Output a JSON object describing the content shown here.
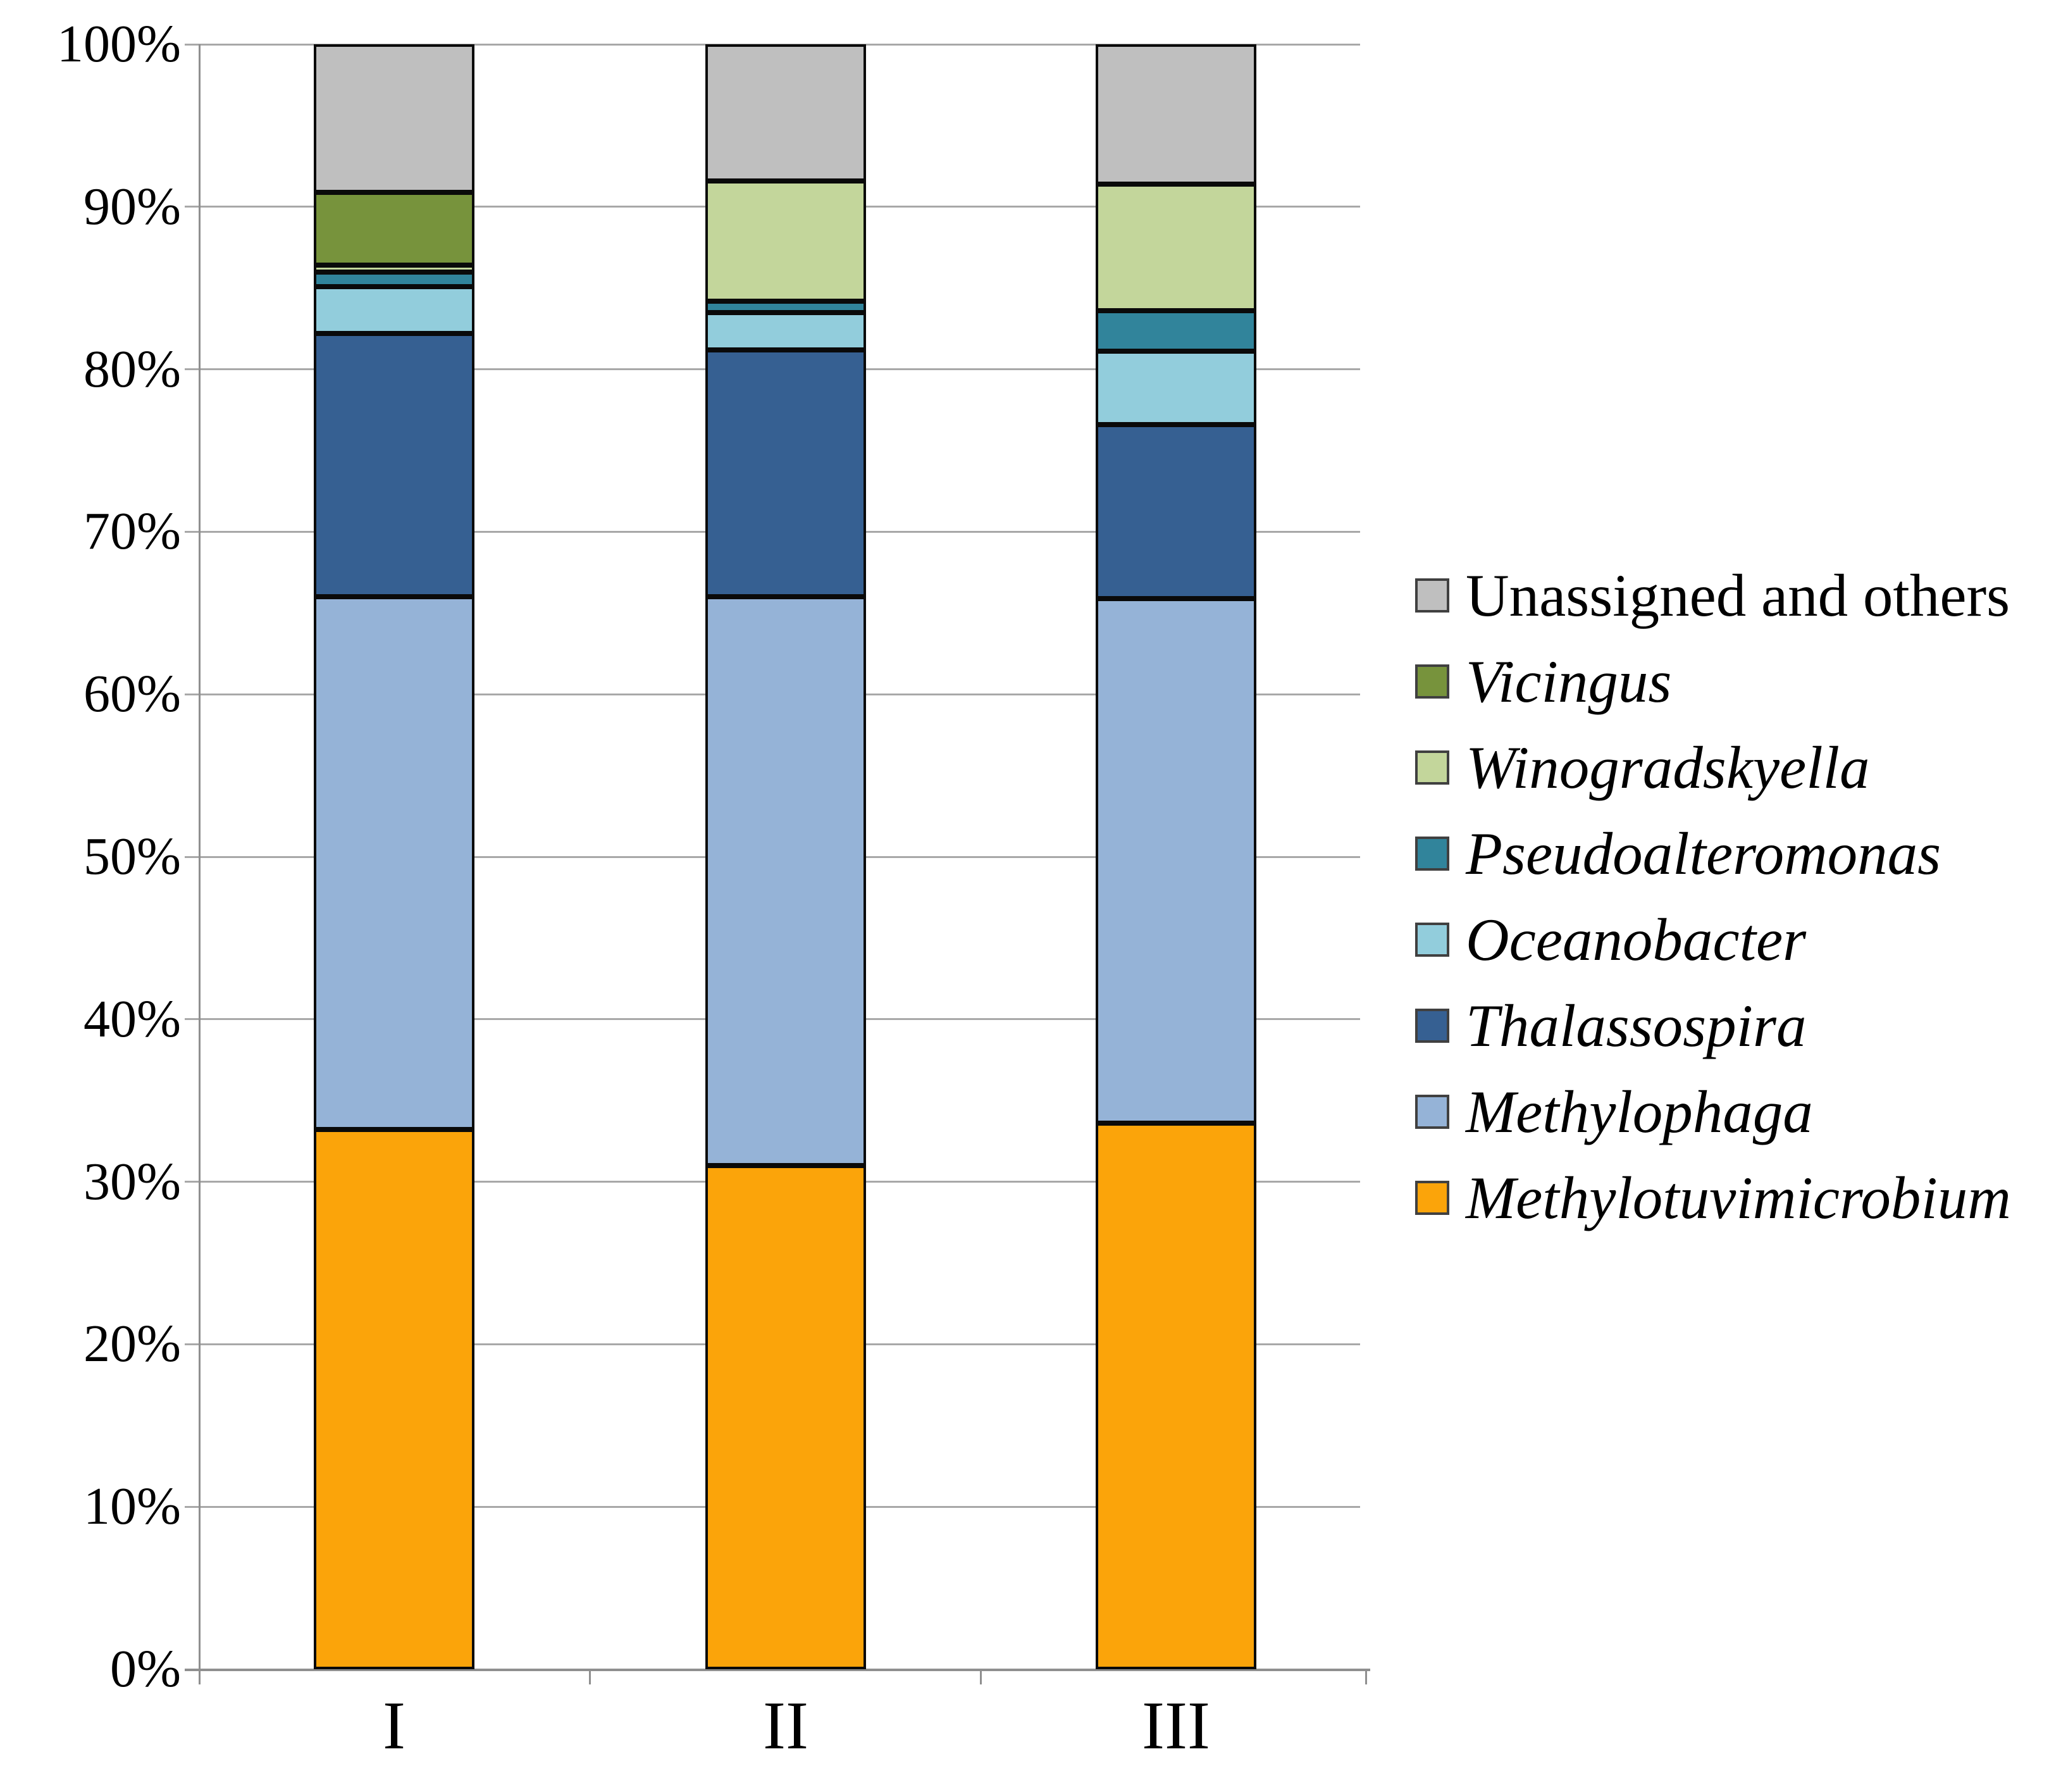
{
  "chart_data": {
    "type": "bar",
    "subtype": "stacked-100-percent",
    "title": "",
    "xlabel": "",
    "ylabel": "",
    "categories": [
      "I",
      "II",
      "III"
    ],
    "series": [
      {
        "name": "Methylotuvimicrobium",
        "color": "#FBA40A",
        "italic": true,
        "values": [
          33.2,
          31.0,
          33.6
        ]
      },
      {
        "name": "Methylophaga",
        "color": "#95B3D7",
        "italic": true,
        "values": [
          32.8,
          35.0,
          32.3
        ]
      },
      {
        "name": "Thalassospira",
        "color": "#366092",
        "italic": true,
        "values": [
          16.2,
          15.2,
          10.7
        ]
      },
      {
        "name": "Oceanobacter",
        "color": "#92CDDC",
        "italic": true,
        "values": [
          2.9,
          2.3,
          4.5
        ]
      },
      {
        "name": "Pseudoalteromonas",
        "color": "#31849B",
        "italic": true,
        "values": [
          0.9,
          0.7,
          2.5
        ]
      },
      {
        "name": "Winogradskyella",
        "color": "#C3D69B",
        "italic": true,
        "values": [
          0.4,
          7.4,
          7.8
        ]
      },
      {
        "name": "Vicingus",
        "color": "#77933C",
        "italic": true,
        "values": [
          4.5,
          0.0,
          0.0
        ]
      },
      {
        "name": "Unassigned and others",
        "color": "#BFBFBF",
        "italic": false,
        "values": [
          9.1,
          8.4,
          8.6
        ]
      }
    ],
    "y_axis": {
      "min": 0,
      "max": 100,
      "tick_labels": [
        "0%",
        "10%",
        "20%",
        "30%",
        "40%",
        "50%",
        "60%",
        "70%",
        "80%",
        "90%",
        "100%"
      ],
      "grid": true
    },
    "legend": {
      "position": "right",
      "order_top_to_bottom": [
        "Unassigned and others",
        "Vicingus",
        "Winogradskyella",
        "Pseudoalteromonas",
        "Oceanobacter",
        "Thalassospira",
        "Methylophaga",
        "Methylotuvimicrobium"
      ]
    }
  }
}
